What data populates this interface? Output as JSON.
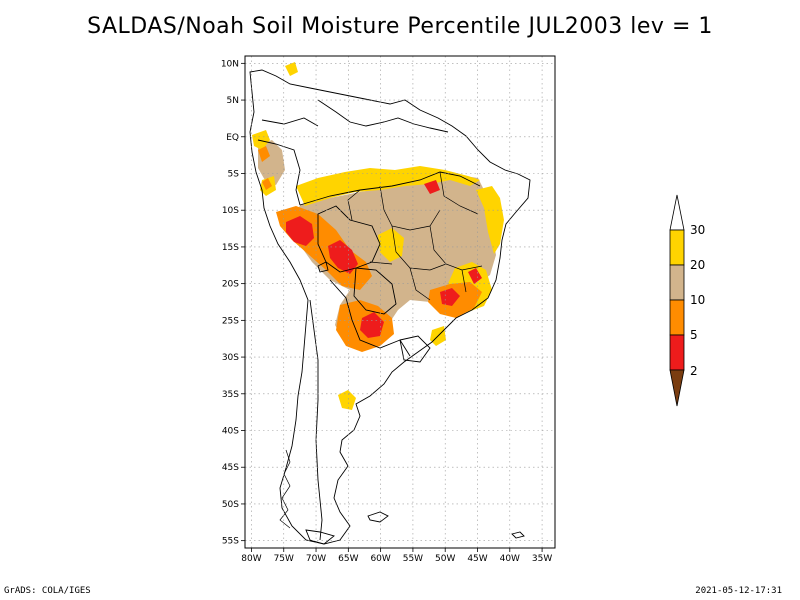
{
  "title": "SALDAS/Noah Soil Moisture Percentile JUL2003 lev = 1",
  "footer": {
    "left": "GrADS: COLA/IGES",
    "right": "2021-05-12-17:31"
  },
  "map": {
    "lat_labels": [
      "10N",
      "5N",
      "EQ",
      "5S",
      "10S",
      "15S",
      "20S",
      "25S",
      "30S",
      "35S",
      "40S",
      "45S",
      "50S",
      "55S"
    ],
    "lat_values": [
      10,
      5,
      0,
      -5,
      -10,
      -15,
      -20,
      -25,
      -30,
      -35,
      -40,
      -45,
      -50,
      -55
    ],
    "lon_labels": [
      "80W",
      "75W",
      "70W",
      "65W",
      "60W",
      "55W",
      "50W",
      "45W",
      "40W",
      "35W"
    ],
    "lon_values": [
      -80,
      -75,
      -70,
      -65,
      -60,
      -55,
      -50,
      -45,
      -40,
      -35
    ],
    "lat_range": [
      -56,
      11
    ],
    "lon_range": [
      -81,
      -33
    ],
    "grid": true
  },
  "colorbar": {
    "labels": [
      "2",
      "5",
      "10",
      "20",
      "30"
    ],
    "colors": {
      "below_2": "#7a3d10",
      "2_5": "#ee1c1c",
      "5_10": "#ff8c00",
      "10_20": "#d2b48c",
      "20_30": "#ffd400",
      "above_30": "#ffffff"
    }
  }
}
